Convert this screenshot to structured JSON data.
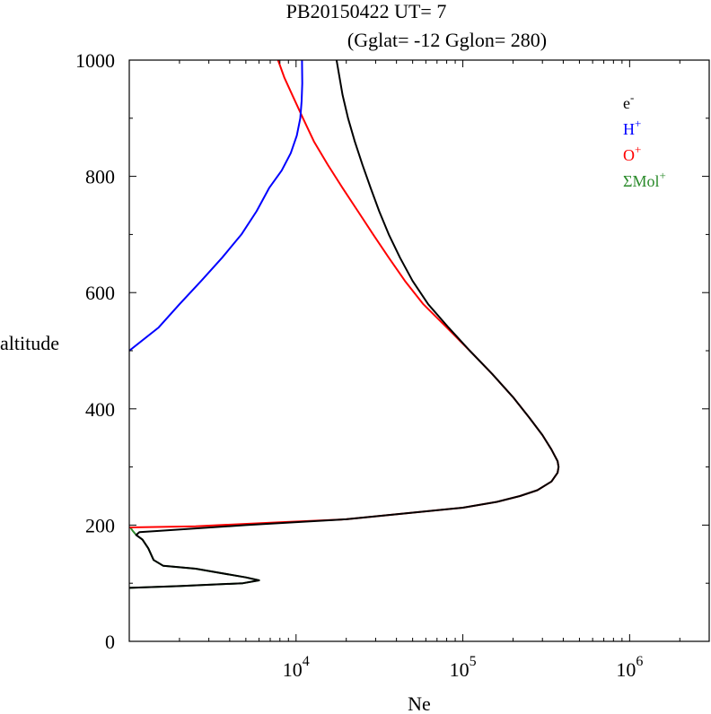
{
  "chart_data": {
    "type": "line",
    "title": "PB20150422   UT=  7",
    "subtitle": "(Gglat= -12   Gglon=  280)",
    "xlabel": "Ne",
    "ylabel": "altitude",
    "xscale": "log",
    "xlim": [
      1000,
      3000000
    ],
    "ylim": [
      0,
      1000
    ],
    "xticks": [
      {
        "value": 10000,
        "base": "10",
        "exp": "4"
      },
      {
        "value": 100000,
        "base": "10",
        "exp": "5"
      },
      {
        "value": 1000000,
        "base": "10",
        "exp": "6"
      }
    ],
    "yticks": [
      {
        "value": 0,
        "label": "0"
      },
      {
        "value": 200,
        "label": "200"
      },
      {
        "value": 400,
        "label": "400"
      },
      {
        "value": 600,
        "label": "600"
      },
      {
        "value": 800,
        "label": "800"
      },
      {
        "value": 1000,
        "label": "1000"
      }
    ],
    "grid": false,
    "legend_position": "top-right",
    "series": [
      {
        "name": "ΣMol+",
        "label_base": "ΣMol",
        "label_sup": "+",
        "color": "#2a8a2a",
        "points": [
          [
            1020,
            195
          ],
          [
            1050,
            190
          ],
          [
            1100,
            183
          ],
          [
            1200,
            175
          ],
          [
            1300,
            160
          ],
          [
            1400,
            140
          ],
          [
            1600,
            130
          ],
          [
            2500,
            125
          ],
          [
            5000,
            110
          ],
          [
            6000,
            105
          ],
          [
            4800,
            100
          ],
          [
            2000,
            95
          ],
          [
            1000,
            92
          ]
        ]
      },
      {
        "name": "O+",
        "label_base": "O",
        "label_sup": "+",
        "color": "#ff0000",
        "points": [
          [
            1000,
            196
          ],
          [
            2500,
            198
          ],
          [
            8000,
            205
          ],
          [
            20000,
            210
          ],
          [
            45000,
            220
          ],
          [
            100000,
            230
          ],
          [
            160000,
            240
          ],
          [
            220000,
            250
          ],
          [
            280000,
            260
          ],
          [
            340000,
            275
          ],
          [
            370000,
            290
          ],
          [
            375000,
            300
          ],
          [
            370000,
            310
          ],
          [
            340000,
            330
          ],
          [
            300000,
            355
          ],
          [
            250000,
            385
          ],
          [
            200000,
            420
          ],
          [
            150000,
            460
          ],
          [
            110000,
            500
          ],
          [
            80000,
            540
          ],
          [
            58000,
            580
          ],
          [
            45000,
            620
          ],
          [
            36000,
            660
          ],
          [
            29000,
            700
          ],
          [
            23500,
            740
          ],
          [
            19000,
            780
          ],
          [
            15500,
            820
          ],
          [
            12800,
            860
          ],
          [
            11000,
            900
          ],
          [
            9500,
            940
          ],
          [
            8500,
            970
          ],
          [
            7800,
            1000
          ]
        ]
      },
      {
        "name": "H+",
        "label_base": "H",
        "label_sup": "+",
        "color": "#0000ff",
        "points": [
          [
            1000,
            500
          ],
          [
            1500,
            540
          ],
          [
            2000,
            580
          ],
          [
            2700,
            620
          ],
          [
            3600,
            660
          ],
          [
            4700,
            700
          ],
          [
            5800,
            740
          ],
          [
            6900,
            780
          ],
          [
            8200,
            810
          ],
          [
            9300,
            840
          ],
          [
            10100,
            870
          ],
          [
            10600,
            900
          ],
          [
            10800,
            930
          ],
          [
            10900,
            960
          ],
          [
            10850,
            1000
          ]
        ]
      },
      {
        "name": "e-",
        "label_base": "e",
        "label_sup": "-",
        "color": "#000000",
        "points": [
          [
            1000,
            92
          ],
          [
            2000,
            95
          ],
          [
            4800,
            100
          ],
          [
            6000,
            105
          ],
          [
            5000,
            110
          ],
          [
            2500,
            125
          ],
          [
            1600,
            130
          ],
          [
            1400,
            140
          ],
          [
            1300,
            160
          ],
          [
            1200,
            175
          ],
          [
            1100,
            183
          ],
          [
            1150,
            188
          ],
          [
            1500,
            190
          ],
          [
            5000,
            200
          ],
          [
            20000,
            210
          ],
          [
            45000,
            220
          ],
          [
            100000,
            230
          ],
          [
            160000,
            240
          ],
          [
            220000,
            250
          ],
          [
            280000,
            260
          ],
          [
            340000,
            275
          ],
          [
            370000,
            290
          ],
          [
            375000,
            300
          ],
          [
            370000,
            310
          ],
          [
            340000,
            330
          ],
          [
            300000,
            355
          ],
          [
            250000,
            385
          ],
          [
            200000,
            420
          ],
          [
            150000,
            460
          ],
          [
            110000,
            500
          ],
          [
            82000,
            540
          ],
          [
            62000,
            580
          ],
          [
            50000,
            620
          ],
          [
            42000,
            660
          ],
          [
            36000,
            700
          ],
          [
            31500,
            740
          ],
          [
            28000,
            780
          ],
          [
            25000,
            820
          ],
          [
            22500,
            860
          ],
          [
            20500,
            900
          ],
          [
            19000,
            940
          ],
          [
            17500,
            1000
          ]
        ]
      }
    ]
  }
}
